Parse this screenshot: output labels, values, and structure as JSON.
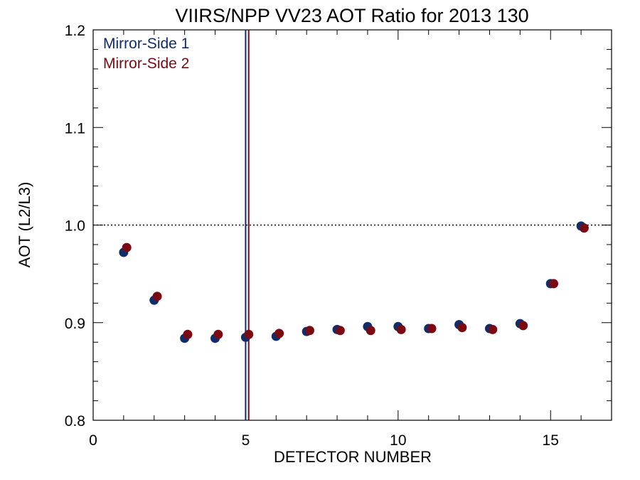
{
  "chart_data": {
    "type": "scatter",
    "title": "VIIRS/NPP VV23 AOT Ratio for 2013 130",
    "xlabel": "DETECTOR NUMBER",
    "ylabel": "AOT (L2/L3)",
    "xlim": [
      0,
      17
    ],
    "ylim": [
      0.8,
      1.2
    ],
    "xticks": [
      0,
      5,
      10,
      15
    ],
    "xtick_labels": [
      "0",
      "5",
      "10",
      "15"
    ],
    "yticks": [
      0.8,
      0.9,
      1.0,
      1.1,
      1.2
    ],
    "ytick_labels": [
      "0.8",
      "0.9",
      "1.0",
      "1.1",
      "1.2"
    ],
    "reference_line": {
      "y": 1.0,
      "style": "dotted"
    },
    "vertical_lines": [
      {
        "x": 5.0,
        "color": "#0f2d6b"
      },
      {
        "x": 5.1,
        "color": "#7a0a12"
      }
    ],
    "legend_placement": "top-left",
    "series": [
      {
        "name": "Mirror-Side 1",
        "color": "#0f2d6b",
        "x": [
          1,
          2,
          3,
          4,
          5,
          6,
          7,
          8,
          9,
          10,
          11,
          12,
          13,
          14,
          15,
          16
        ],
        "y": [
          0.972,
          0.923,
          0.884,
          0.884,
          0.885,
          0.886,
          0.891,
          0.893,
          0.896,
          0.896,
          0.894,
          0.898,
          0.894,
          0.899,
          0.94,
          0.999
        ]
      },
      {
        "name": "Mirror-Side 2",
        "color": "#7a0a12",
        "x": [
          1.1,
          2.1,
          3.1,
          4.1,
          5.1,
          6.1,
          7.1,
          8.1,
          9.1,
          10.1,
          11.1,
          12.1,
          13.1,
          14.1,
          15.1,
          16.1
        ],
        "y": [
          0.977,
          0.927,
          0.888,
          0.888,
          0.888,
          0.889,
          0.892,
          0.892,
          0.892,
          0.893,
          0.894,
          0.895,
          0.893,
          0.897,
          0.94,
          0.997
        ]
      }
    ]
  }
}
